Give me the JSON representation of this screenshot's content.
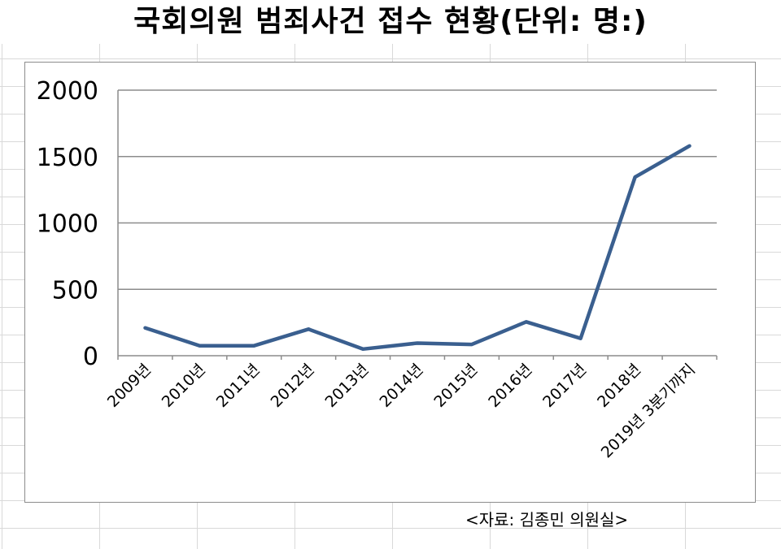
{
  "title": "국회의원 범죄사건 접수 현황(단위: 명:)",
  "source": "<자료: 김종민 의원실>",
  "colors": {
    "line": "#3a5f8f",
    "grid": "#8c8c8c",
    "axis": "#8c8c8c",
    "text": "#000000"
  },
  "chart_data": {
    "type": "line",
    "title": "국회의원 범죄사건 접수 현황(단위: 명:)",
    "xlabel": "",
    "ylabel": "",
    "ylim": [
      0,
      2000
    ],
    "yticks": [
      0,
      500,
      1000,
      1500,
      2000
    ],
    "grid": true,
    "legend": "none",
    "categories": [
      "2009년",
      "2010년",
      "2011년",
      "2012년",
      "2013년",
      "2014년",
      "2015년",
      "2016년",
      "2017년",
      "2018년",
      "2019년  3분기까지"
    ],
    "series": [
      {
        "values": [
          210,
          75,
          75,
          200,
          50,
          95,
          85,
          255,
          130,
          1345,
          1580
        ]
      }
    ]
  }
}
